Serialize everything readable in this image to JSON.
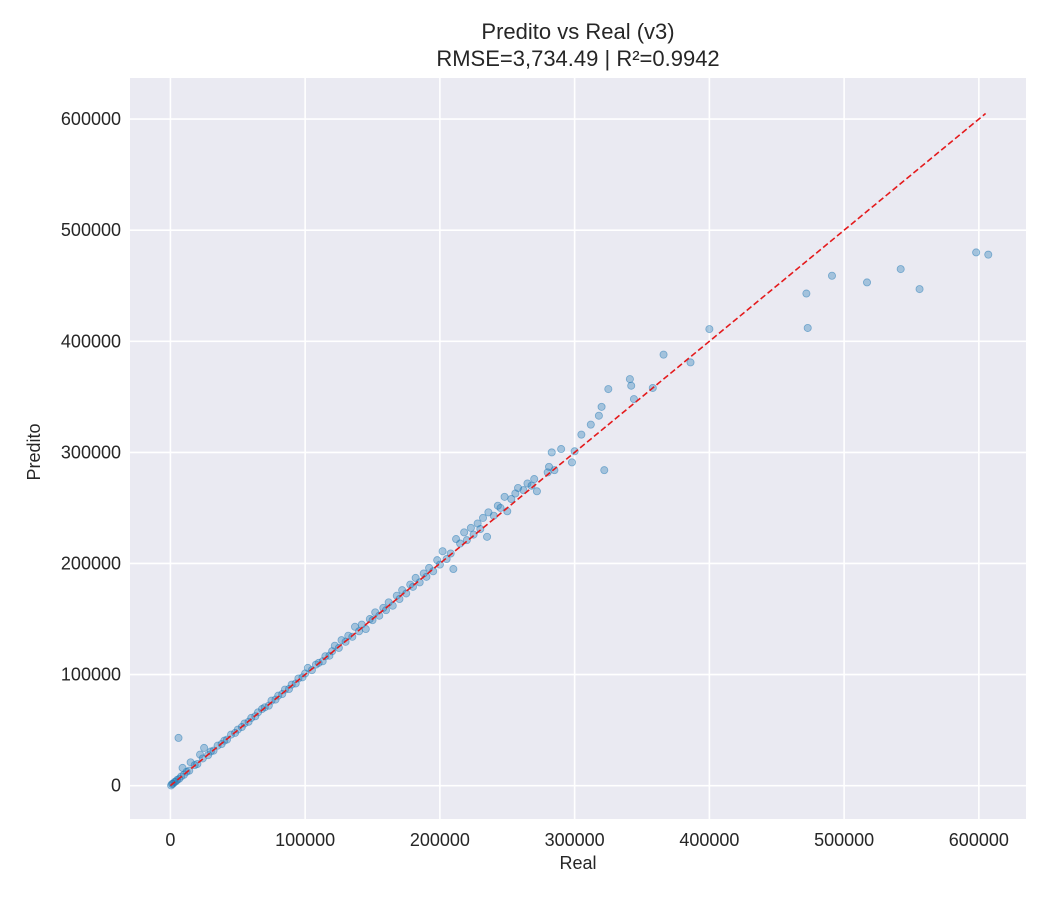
{
  "chart_data": {
    "type": "scatter",
    "title": "Predito vs Real (v3)",
    "subtitle": "RMSE=3,734.49 | R²=0.9942",
    "xlabel": "Real",
    "ylabel": "Predito",
    "xlim": [
      -30000,
      635000
    ],
    "ylim": [
      -30000,
      637000
    ],
    "x_ticks": [
      0,
      100000,
      200000,
      300000,
      400000,
      500000,
      600000
    ],
    "y_ticks": [
      0,
      100000,
      200000,
      300000,
      400000,
      500000,
      600000
    ],
    "x_tick_labels": [
      "0",
      "100000",
      "200000",
      "300000",
      "400000",
      "500000",
      "600000"
    ],
    "y_tick_labels": [
      "0",
      "100000",
      "200000",
      "300000",
      "400000",
      "500000",
      "600000"
    ],
    "grid": true,
    "background_color": "#eaeaf2",
    "point_color": "#1f77b4",
    "point_opacity": 0.35,
    "reference_line": {
      "style": "dashed",
      "color": "#e41a1c",
      "from": [
        0,
        0
      ],
      "to": [
        605000,
        605000
      ]
    },
    "series": [
      {
        "points": [
          [
            500,
            200
          ],
          [
            1200,
            1500
          ],
          [
            2000,
            1800
          ],
          [
            3000,
            3200
          ],
          [
            4000,
            3800
          ],
          [
            5000,
            5200
          ],
          [
            6000,
            43000
          ],
          [
            6500,
            6200
          ],
          [
            8000,
            8300
          ],
          [
            9000,
            16000
          ],
          [
            10000,
            9800
          ],
          [
            12000,
            12500
          ],
          [
            14000,
            13500
          ],
          [
            15000,
            21000
          ],
          [
            18000,
            18500
          ],
          [
            20000,
            19500
          ],
          [
            22000,
            28000
          ],
          [
            24000,
            24500
          ],
          [
            25000,
            34000
          ],
          [
            28000,
            27500
          ],
          [
            30000,
            30800
          ],
          [
            32000,
            31500
          ],
          [
            35000,
            36000
          ],
          [
            38000,
            37500
          ],
          [
            40000,
            40500
          ],
          [
            42000,
            41500
          ],
          [
            45000,
            46000
          ],
          [
            48000,
            47500
          ],
          [
            50000,
            50500
          ],
          [
            53000,
            52800
          ],
          [
            55000,
            56000
          ],
          [
            58000,
            57500
          ],
          [
            60000,
            61000
          ],
          [
            63000,
            62500
          ],
          [
            65000,
            66000
          ],
          [
            68000,
            69000
          ],
          [
            70000,
            70500
          ],
          [
            73000,
            72000
          ],
          [
            75000,
            76500
          ],
          [
            78000,
            77500
          ],
          [
            80000,
            81000
          ],
          [
            83000,
            82500
          ],
          [
            85000,
            86500
          ],
          [
            88000,
            87000
          ],
          [
            90000,
            91000
          ],
          [
            93000,
            92000
          ],
          [
            95000,
            96500
          ],
          [
            98000,
            97500
          ],
          [
            100000,
            101000
          ],
          [
            102000,
            106000
          ],
          [
            105000,
            104000
          ],
          [
            108000,
            109000
          ],
          [
            110000,
            110500
          ],
          [
            113000,
            112000
          ],
          [
            115000,
            116500
          ],
          [
            118000,
            117000
          ],
          [
            120000,
            121000
          ],
          [
            122000,
            126000
          ],
          [
            125000,
            124000
          ],
          [
            127000,
            131000
          ],
          [
            130000,
            129500
          ],
          [
            132000,
            135000
          ],
          [
            135000,
            134000
          ],
          [
            137000,
            143000
          ],
          [
            140000,
            139000
          ],
          [
            142000,
            145000
          ],
          [
            145000,
            141000
          ],
          [
            148000,
            150000
          ],
          [
            150000,
            149000
          ],
          [
            152000,
            156000
          ],
          [
            155000,
            153000
          ],
          [
            158000,
            160000
          ],
          [
            160000,
            158000
          ],
          [
            162000,
            165000
          ],
          [
            165000,
            162000
          ],
          [
            168000,
            171000
          ],
          [
            170000,
            168000
          ],
          [
            172000,
            176000
          ],
          [
            175000,
            173000
          ],
          [
            178000,
            181000
          ],
          [
            180000,
            179000
          ],
          [
            182000,
            187000
          ],
          [
            185000,
            183000
          ],
          [
            188000,
            191000
          ],
          [
            190000,
            188000
          ],
          [
            192000,
            196000
          ],
          [
            195000,
            193000
          ],
          [
            198000,
            203000
          ],
          [
            200000,
            199000
          ],
          [
            202000,
            211000
          ],
          [
            205000,
            204000
          ],
          [
            208000,
            209000
          ],
          [
            210000,
            195000
          ],
          [
            212000,
            222000
          ],
          [
            215000,
            218000
          ],
          [
            218000,
            228000
          ],
          [
            220000,
            221000
          ],
          [
            223000,
            232000
          ],
          [
            225000,
            226000
          ],
          [
            228000,
            236000
          ],
          [
            230000,
            231000
          ],
          [
            232000,
            241000
          ],
          [
            235000,
            224000
          ],
          [
            236000,
            246000
          ],
          [
            240000,
            243000
          ],
          [
            243000,
            252000
          ],
          [
            245000,
            250000
          ],
          [
            248000,
            260000
          ],
          [
            250000,
            247000
          ],
          [
            253000,
            258000
          ],
          [
            256000,
            263000
          ],
          [
            258000,
            268000
          ],
          [
            262000,
            266000
          ],
          [
            265000,
            272000
          ],
          [
            268000,
            270000
          ],
          [
            270000,
            276000
          ],
          [
            272000,
            265000
          ],
          [
            280000,
            282000
          ],
          [
            281000,
            287000
          ],
          [
            283000,
            300000
          ],
          [
            285000,
            284000
          ],
          [
            290000,
            303000
          ],
          [
            298000,
            291000
          ],
          [
            300000,
            301000
          ],
          [
            305000,
            316000
          ],
          [
            312000,
            325000
          ],
          [
            318000,
            333000
          ],
          [
            320000,
            341000
          ],
          [
            322000,
            284000
          ],
          [
            325000,
            357000
          ],
          [
            341000,
            366000
          ],
          [
            342000,
            360000
          ],
          [
            344000,
            348000
          ],
          [
            358000,
            358000
          ],
          [
            366000,
            388000
          ],
          [
            386000,
            381000
          ],
          [
            400000,
            411000
          ],
          [
            472000,
            443000
          ],
          [
            473000,
            412000
          ],
          [
            491000,
            459000
          ],
          [
            517000,
            453000
          ],
          [
            542000,
            465000
          ],
          [
            556000,
            447000
          ],
          [
            598000,
            480000
          ],
          [
            607000,
            478000
          ]
        ]
      }
    ]
  }
}
